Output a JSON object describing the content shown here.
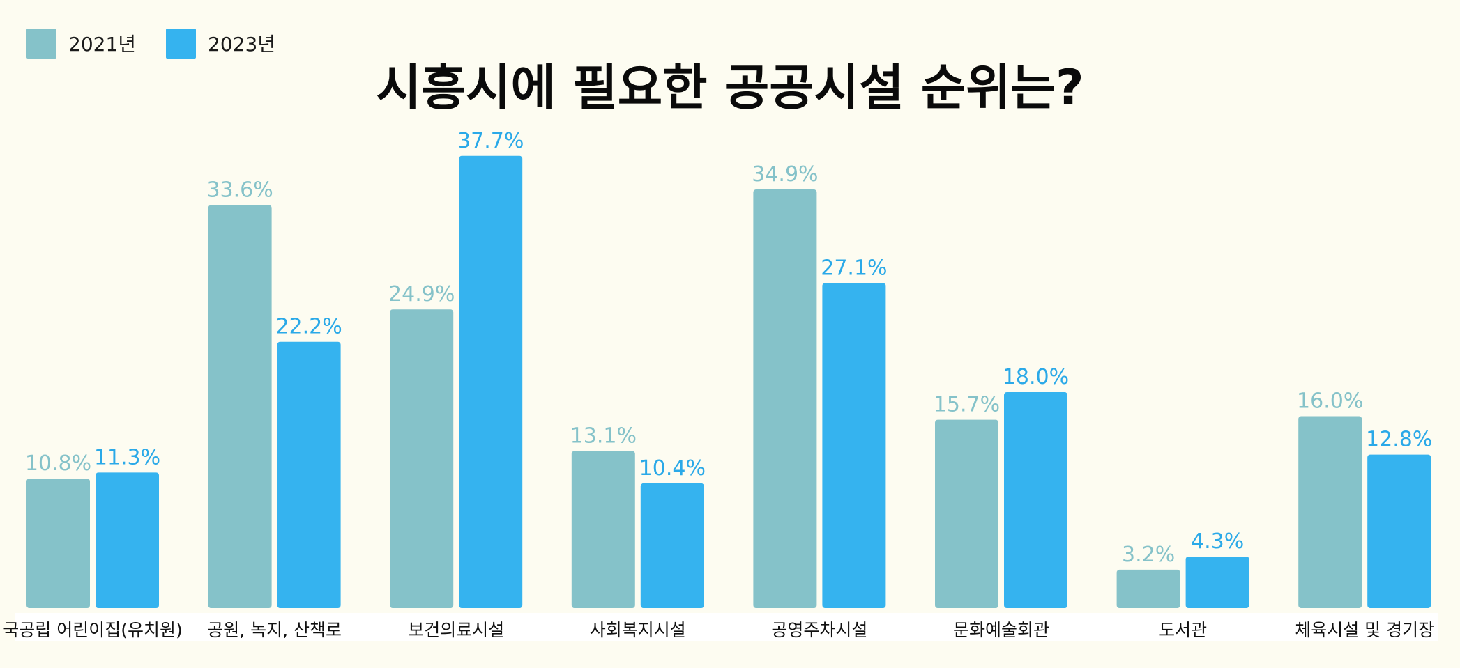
{
  "chart_data": {
    "type": "bar",
    "title": "시흥시에 필요한 공공시설 순위는?",
    "categories": [
      "국공립 어린이집(유치원)",
      "공원, 녹지, 산책로",
      "보건의료시설",
      "사회복지시설",
      "공영주차시설",
      "문화예술회관",
      "도서관",
      "체육시설 및 경기장"
    ],
    "series": [
      {
        "name": "2021년",
        "color": "#85c2c9",
        "values": [
          10.8,
          33.6,
          24.9,
          13.1,
          34.9,
          15.7,
          3.2,
          16.0
        ],
        "labels": [
          "10.8%",
          "33.6%",
          "24.9%",
          "13.1%",
          "34.9%",
          "15.7%",
          "3.2%",
          "16.0%"
        ]
      },
      {
        "name": "2023년",
        "color": "#35b3ef",
        "values": [
          11.3,
          22.2,
          37.7,
          10.4,
          27.1,
          18.0,
          4.3,
          12.8
        ],
        "labels": [
          "11.3%",
          "22.2%",
          "37.7%",
          "10.4%",
          "27.1%",
          "18.0%",
          "4.3%",
          "12.8%"
        ]
      }
    ],
    "ylim": [
      0,
      40
    ],
    "legend": "top-left",
    "grid": false
  }
}
